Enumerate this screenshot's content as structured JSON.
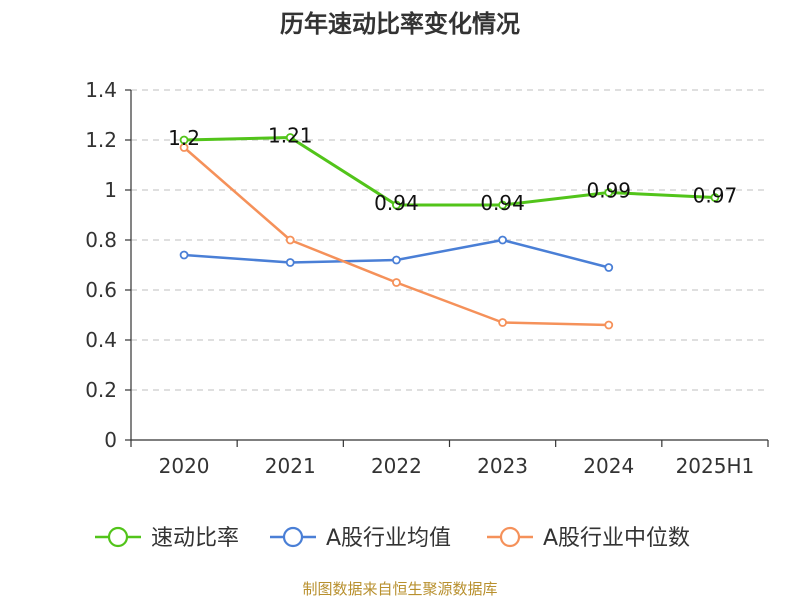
{
  "chart_data": {
    "type": "line",
    "title": "历年速动比率变化情况",
    "categories": [
      "2020",
      "2021",
      "2022",
      "2023",
      "2024",
      "2025H1"
    ],
    "ylim": [
      0,
      1.4
    ],
    "yticks": [
      "0",
      "0.2",
      "0.4",
      "0.6",
      "0.8",
      "1",
      "1.2",
      "1.4"
    ],
    "grid": true,
    "legend_position": "bottom",
    "series": [
      {
        "name": "速动比率",
        "color": "#52c41a",
        "values": [
          1.2,
          1.21,
          0.94,
          0.94,
          0.99,
          0.97
        ],
        "labels": [
          "1.2",
          "1.21",
          "0.94",
          "0.94",
          "0.99",
          "0.97"
        ]
      },
      {
        "name": "A股行业均值",
        "color": "#4a7fd6",
        "values": [
          0.74,
          0.71,
          0.72,
          0.8,
          0.69,
          null
        ]
      },
      {
        "name": "A股行业中位数",
        "color": "#f5915a",
        "values": [
          1.17,
          0.8,
          0.63,
          0.47,
          0.46,
          null
        ]
      }
    ],
    "source": "制图数据来自恒生聚源数据库"
  }
}
